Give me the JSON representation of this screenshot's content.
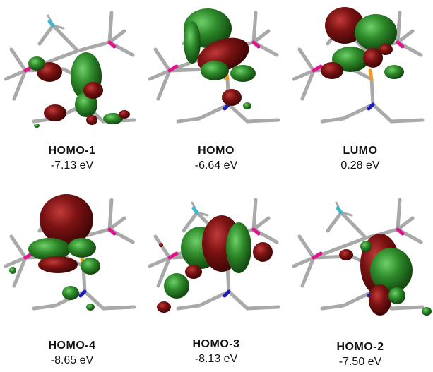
{
  "colors": {
    "positive_lobe": "#2e8a2a",
    "negative_lobe": "#7a1212",
    "bond": "#a9a9a9",
    "phosphorus_b": "#e0148c",
    "phosphorus_p": "#f29a1e",
    "nitrogen": "#1c1cc7",
    "fluorine": "#3fb8d0"
  },
  "orbitals": [
    {
      "id": "homo-1",
      "label": "HOMO-1",
      "energy": "-7.13 eV"
    },
    {
      "id": "homo",
      "label": "HOMO",
      "energy": "-6.64 eV"
    },
    {
      "id": "lumo",
      "label": "LUMO",
      "energy": "0.28 eV"
    },
    {
      "id": "homo-4",
      "label": "HOMO-4",
      "energy": "-8.65 eV"
    },
    {
      "id": "homo-3",
      "label": "HOMO-3",
      "energy": "-8.13 eV"
    },
    {
      "id": "homo-2",
      "label": "HOMO-2",
      "energy": "-7.50 eV"
    }
  ]
}
